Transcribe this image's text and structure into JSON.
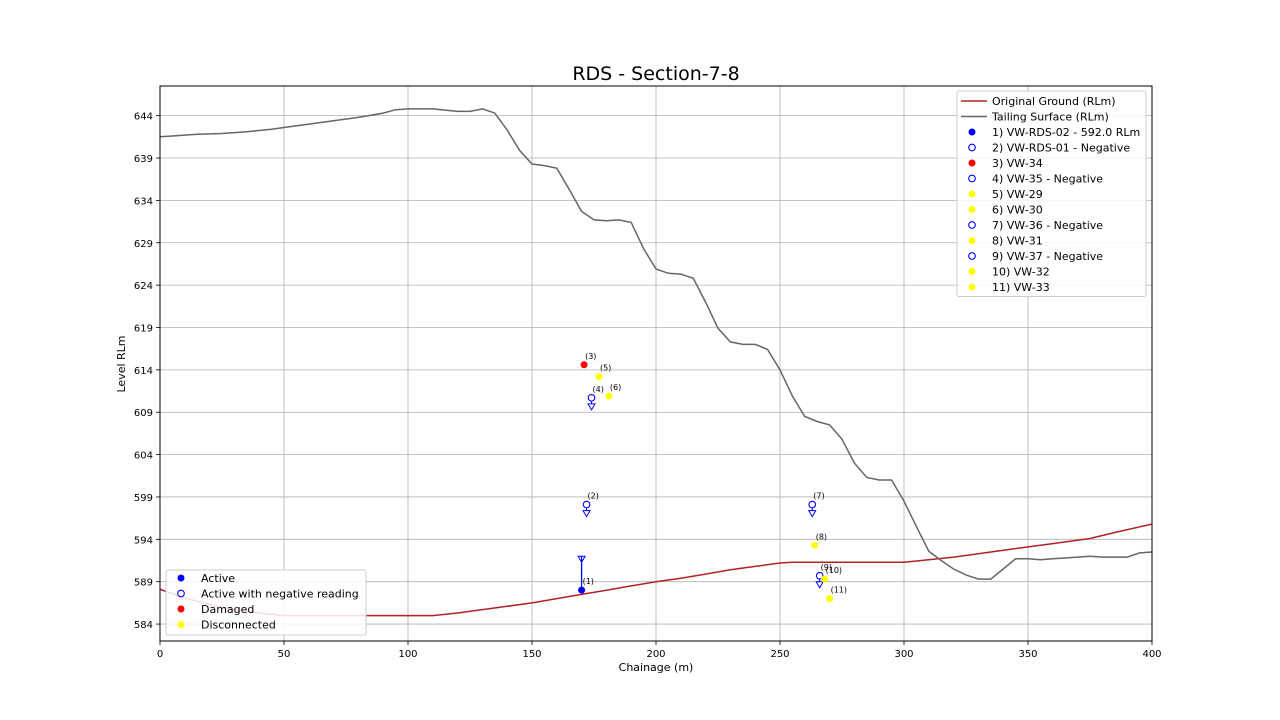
{
  "chart_data": {
    "type": "line",
    "title": "RDS - Section-7-8",
    "xlabel": "Chainage (m)",
    "ylabel": "Level RLm",
    "xlim": [
      0,
      400
    ],
    "ylim": [
      582.0,
      647.5
    ],
    "xticks": [
      0,
      50,
      100,
      150,
      200,
      250,
      300,
      350,
      400
    ],
    "yticks": [
      584,
      589,
      594,
      599,
      604,
      609,
      614,
      619,
      624,
      629,
      634,
      639,
      644
    ],
    "grid": true,
    "series": [
      {
        "name": "Original Ground (RLm)",
        "color": "#b22222",
        "x": [
          0,
          10,
          20,
          30,
          40,
          50,
          60,
          70,
          80,
          90,
          100,
          110,
          120,
          130,
          140,
          150,
          160,
          170,
          180,
          190,
          200,
          210,
          220,
          230,
          240,
          250,
          255,
          260,
          270,
          280,
          290,
          300,
          310,
          320,
          330,
          340,
          350,
          360,
          375,
          385,
          400
        ],
        "y": [
          588.1,
          587.1,
          586.3,
          585.7,
          585.3,
          585.0,
          585.0,
          585.0,
          585.0,
          585.0,
          585.0,
          585.0,
          585.3,
          585.7,
          586.1,
          586.5,
          587.0,
          587.5,
          588.0,
          588.5,
          589.0,
          589.4,
          589.9,
          590.4,
          590.8,
          591.2,
          591.3,
          591.3,
          591.3,
          591.3,
          591.3,
          591.3,
          591.6,
          591.9,
          592.3,
          592.7,
          593.1,
          593.5,
          594.1,
          594.8,
          595.8
        ]
      },
      {
        "name": "Tailing Surface (RLm)",
        "color": "#666666",
        "x": [
          0,
          5,
          15,
          25,
          35,
          45,
          50,
          60,
          70,
          80,
          90,
          95,
          100,
          110,
          120,
          125,
          130,
          135,
          140,
          145,
          150,
          155,
          160,
          165,
          170,
          175,
          180,
          185,
          190,
          195,
          200,
          205,
          210,
          215,
          220,
          225,
          230,
          235,
          240,
          245,
          250,
          255,
          260,
          265,
          270,
          275,
          280,
          285,
          290,
          295,
          300,
          305,
          310,
          315,
          320,
          325,
          330,
          335,
          340,
          345,
          350,
          355,
          360,
          365,
          370,
          375,
          380,
          385,
          390,
          395,
          400
        ],
        "y": [
          641.5,
          641.6,
          641.8,
          641.9,
          642.1,
          642.4,
          642.6,
          643.0,
          643.4,
          643.8,
          644.3,
          644.7,
          644.8,
          644.8,
          644.5,
          644.5,
          644.8,
          644.3,
          642.3,
          639.9,
          638.3,
          638.1,
          637.8,
          635.3,
          632.7,
          631.7,
          631.6,
          631.7,
          631.4,
          628.3,
          625.9,
          625.4,
          625.3,
          624.8,
          622.0,
          618.9,
          617.3,
          617.0,
          617.0,
          616.4,
          614.0,
          610.9,
          608.5,
          607.9,
          607.5,
          605.8,
          603.0,
          601.3,
          601.0,
          601.0,
          598.5,
          595.5,
          592.6,
          591.5,
          590.5,
          589.8,
          589.3,
          589.3,
          590.5,
          591.7,
          591.7,
          591.6,
          591.7,
          591.8,
          591.9,
          592.0,
          591.9,
          591.9,
          591.9,
          592.4,
          592.5
        ]
      }
    ],
    "points": [
      {
        "label": "(1)",
        "legend": "1) VW-RDS-02 - 592.0 RLm",
        "x": 170,
        "y": 588.0,
        "status": "Active",
        "arrow": "up"
      },
      {
        "label": "(2)",
        "legend": "2) VW-RDS-01 - Negative",
        "x": 172,
        "y": 598.1,
        "status": "Active with negative reading",
        "arrow": "down"
      },
      {
        "label": "(3)",
        "legend": "3) VW-34",
        "x": 171,
        "y": 614.6,
        "status": "Damaged"
      },
      {
        "label": "(4)",
        "legend": "4) VW-35 - Negative",
        "x": 174,
        "y": 610.7,
        "status": "Active with negative reading",
        "arrow": "down"
      },
      {
        "label": "(5)",
        "legend": "5) VW-29",
        "x": 177,
        "y": 613.2,
        "status": "Disconnected"
      },
      {
        "label": "(6)",
        "legend": "6) VW-30",
        "x": 181,
        "y": 610.9,
        "status": "Disconnected"
      },
      {
        "label": "(7)",
        "legend": "7) VW-36 - Negative",
        "x": 263,
        "y": 598.1,
        "status": "Active with negative reading",
        "arrow": "down"
      },
      {
        "label": "(8)",
        "legend": "8) VW-31",
        "x": 264,
        "y": 593.3,
        "status": "Disconnected"
      },
      {
        "label": "(9)",
        "legend": "9) VW-37 - Negative",
        "x": 266,
        "y": 589.7,
        "status": "Active with negative reading",
        "arrow": "down"
      },
      {
        "label": "(10)",
        "legend": "10) VW-32",
        "x": 268,
        "y": 589.3,
        "status": "Disconnected"
      },
      {
        "label": "(11)",
        "legend": "11) VW-33",
        "x": 270,
        "y": 587.0,
        "status": "Disconnected"
      }
    ],
    "status_legend": [
      {
        "label": "Active",
        "marker": "filled",
        "color": "#0000ff"
      },
      {
        "label": "Active with negative reading",
        "marker": "open",
        "color": "#0000ff"
      },
      {
        "label": "Damaged",
        "marker": "filled",
        "color": "#ff0000"
      },
      {
        "label": "Disconnected",
        "marker": "filled",
        "color": "#ffff00"
      }
    ],
    "series_legend_placement": "top-right",
    "status_legend_placement": "lower-left",
    "colors": {
      "active": "#0000ff",
      "damaged": "#ff0000",
      "disconnected": "#ffff00",
      "grid": "#b0b0b0",
      "frame": "#000000"
    }
  }
}
